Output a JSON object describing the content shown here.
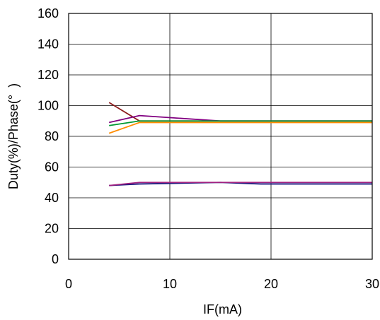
{
  "chart_data": {
    "type": "line",
    "title": "",
    "xlabel": "IF(mA)",
    "ylabel": "Duty(%)/Phase(°  )",
    "xlim": [
      0,
      30
    ],
    "ylim": [
      0,
      160
    ],
    "xticks": [
      0,
      10,
      20,
      30
    ],
    "yticks": [
      0,
      20,
      40,
      60,
      80,
      100,
      120,
      140,
      160
    ],
    "grid": true,
    "legend": "none",
    "series": [
      {
        "color": "#8B1A1A",
        "x": [
          4,
          7,
          15,
          30
        ],
        "y": [
          102,
          90,
          90,
          90
        ]
      },
      {
        "color": "#800080",
        "x": [
          4,
          7,
          15,
          30
        ],
        "y": [
          89,
          93.5,
          90,
          90
        ]
      },
      {
        "color": "#009933",
        "x": [
          4,
          7,
          15,
          30
        ],
        "y": [
          87,
          90,
          90,
          90
        ]
      },
      {
        "color": "#FF8C00",
        "x": [
          4,
          7,
          15,
          30
        ],
        "y": [
          82,
          89,
          89,
          89
        ]
      },
      {
        "color": "#1A1A80",
        "x": [
          4,
          7,
          15,
          19,
          30
        ],
        "y": [
          48,
          49,
          50,
          49,
          49
        ]
      },
      {
        "color": "#A0207F",
        "x": [
          4,
          7,
          15,
          30
        ],
        "y": [
          48,
          50,
          50,
          50
        ]
      }
    ]
  }
}
